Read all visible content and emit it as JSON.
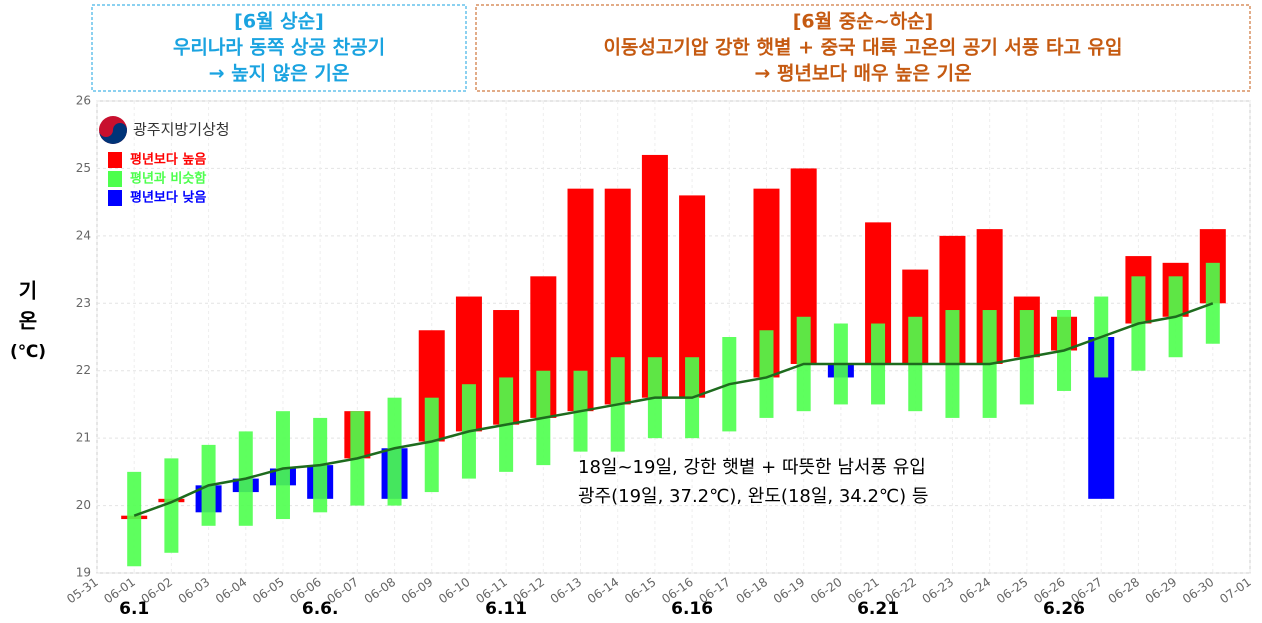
{
  "header": {
    "left": {
      "lines": [
        "[6월 상순]",
        "우리나라 동쪽 상공 찬공기",
        "→ 높지 않은 기온"
      ],
      "color": "#1aa3e0"
    },
    "right": {
      "lines": [
        "[6월 중순~하순]",
        "이동성고기압 강한 햇볕 + 중국 대륙 고온의 공기 서풍 타고 유입",
        "→ 평년보다 매우 높은 기온"
      ],
      "color": "#c55a11"
    }
  },
  "logo": "광주지방기상청",
  "chart_data": {
    "type": "bar",
    "ylabel": [
      "기",
      "온",
      "(℃)"
    ],
    "categories": [
      "05-31",
      "06-01",
      "06-02",
      "06-03",
      "06-04",
      "06-05",
      "06-06",
      "06-07",
      "06-08",
      "06-09",
      "06-10",
      "06-11",
      "06-12",
      "06-13",
      "06-14",
      "06-15",
      "06-16",
      "06-17",
      "06-18",
      "06-19",
      "06-20",
      "06-21",
      "06-22",
      "06-23",
      "06-24",
      "06-25",
      "06-26",
      "06-27",
      "06-28",
      "06-29",
      "06-30",
      "07-01"
    ],
    "markers": [
      "6.1",
      "6.6.",
      "6.11",
      "6.16",
      "6.21",
      "6.26"
    ],
    "ylim": [
      19,
      26
    ],
    "yticks": [
      19,
      20,
      21,
      22,
      23,
      24,
      25,
      26
    ],
    "grid": true,
    "series": [
      {
        "name": "평년보다 높음",
        "color": "#ff0000",
        "values": [
          null,
          19.8,
          20.1,
          null,
          null,
          null,
          null,
          21.4,
          null,
          22.6,
          23.1,
          22.9,
          23.4,
          24.7,
          24.7,
          25.2,
          24.6,
          null,
          24.7,
          25.0,
          null,
          24.2,
          23.5,
          24.0,
          24.1,
          23.1,
          22.8,
          null,
          23.7,
          23.6,
          24.1,
          null
        ]
      },
      {
        "name": "평년과 비슷함",
        "color": "#4dff4d",
        "low": [
          null,
          19.1,
          19.3,
          19.7,
          19.7,
          19.8,
          19.9,
          20.0,
          20.0,
          20.2,
          20.4,
          20.5,
          20.6,
          20.8,
          20.8,
          21.0,
          21.0,
          21.1,
          21.3,
          21.4,
          21.5,
          21.5,
          21.4,
          21.3,
          21.3,
          21.5,
          21.7,
          21.9,
          22.0,
          22.2,
          22.4,
          null
        ],
        "high": [
          null,
          20.5,
          20.7,
          20.9,
          21.1,
          21.4,
          21.3,
          21.4,
          21.6,
          21.6,
          21.8,
          21.9,
          22.0,
          22.0,
          22.2,
          22.2,
          22.2,
          22.5,
          22.6,
          22.8,
          22.7,
          22.7,
          22.8,
          22.9,
          22.9,
          22.9,
          22.9,
          23.1,
          23.4,
          23.4,
          23.6,
          null
        ]
      },
      {
        "name": "평년보다 낮음",
        "color": "#0000ff",
        "values": [
          null,
          null,
          null,
          19.9,
          20.2,
          20.3,
          20.1,
          null,
          20.1,
          null,
          null,
          null,
          null,
          null,
          null,
          null,
          null,
          null,
          null,
          null,
          21.9,
          null,
          null,
          null,
          null,
          null,
          null,
          20.1,
          null,
          null,
          null,
          null
        ]
      }
    ],
    "normal": {
      "color": "#1e6b1e",
      "values": [
        null,
        19.85,
        20.05,
        20.3,
        20.4,
        20.55,
        20.6,
        20.7,
        20.85,
        20.95,
        21.1,
        21.2,
        21.3,
        21.4,
        21.5,
        21.6,
        21.6,
        21.8,
        21.9,
        22.1,
        22.1,
        22.1,
        22.1,
        22.1,
        22.1,
        22.2,
        22.3,
        22.5,
        22.7,
        22.8,
        23.0,
        null
      ]
    },
    "annotation": [
      "18일~19일, 강한 햇볕 + 따뜻한 남서풍 유입",
      "광주(19일, 37.2℃), 완도(18일, 34.2℃) 등"
    ]
  }
}
